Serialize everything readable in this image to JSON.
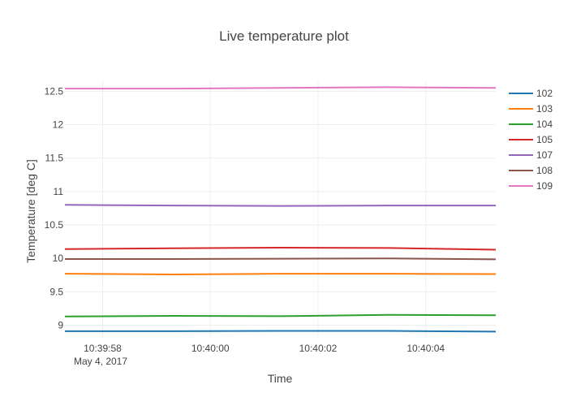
{
  "chart_data": {
    "type": "line",
    "title": "Live temperature plot",
    "xlabel": "Time",
    "ylabel": "Temperature [deg C]",
    "x_date_label": "May 4, 2017",
    "x": [
      "10:39:57.3",
      "10:39:59.3",
      "10:40:01.3",
      "10:40:03.3",
      "10:40:05.3"
    ],
    "x_tick_values": [
      "10:39:58",
      "10:40:00",
      "10:40:02",
      "10:40:04"
    ],
    "x_tick_labels": [
      "10:39:58",
      "10:40:00",
      "10:40:02",
      "10:40:04"
    ],
    "xlim": [
      "10:39:57.3",
      "10:40:05.3"
    ],
    "y_ticks": [
      9,
      9.5,
      10,
      10.5,
      11,
      11.5,
      12,
      12.5
    ],
    "ylim": [
      8.8,
      12.65
    ],
    "grid": true,
    "legend_position": "right",
    "series": [
      {
        "name": "102",
        "color": "#1f77b4",
        "values": [
          8.91,
          8.91,
          8.915,
          8.915,
          8.905
        ]
      },
      {
        "name": "103",
        "color": "#ff7f0e",
        "values": [
          9.77,
          9.76,
          9.77,
          9.77,
          9.765
        ]
      },
      {
        "name": "104",
        "color": "#2ca02c",
        "values": [
          9.13,
          9.14,
          9.135,
          9.155,
          9.15
        ]
      },
      {
        "name": "105",
        "color": "#d62728",
        "values": [
          10.14,
          10.15,
          10.16,
          10.155,
          10.13
        ]
      },
      {
        "name": "107",
        "color": "#9467bd",
        "values": [
          10.8,
          10.79,
          10.785,
          10.79,
          10.79
        ]
      },
      {
        "name": "108",
        "color": "#8c564b",
        "values": [
          9.99,
          9.99,
          9.995,
          10.0,
          9.985
        ]
      },
      {
        "name": "109",
        "color": "#e377c2",
        "values": [
          12.54,
          12.54,
          12.55,
          12.56,
          12.55
        ]
      }
    ]
  }
}
